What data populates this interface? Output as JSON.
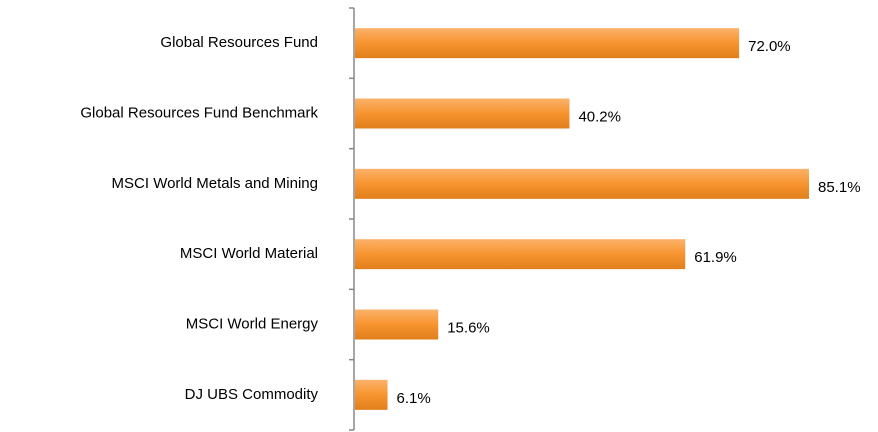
{
  "chart_data": {
    "type": "bar",
    "orientation": "horizontal",
    "categories": [
      "Global Resources Fund",
      "Global Resources Fund Benchmark",
      "MSCI World Metals and Mining",
      "MSCI World Material",
      "MSCI World Energy",
      "DJ UBS Commodity"
    ],
    "values": [
      72.0,
      40.2,
      85.1,
      61.9,
      15.6,
      6.1
    ],
    "value_labels": [
      "72.0%",
      "40.2%",
      "85.1%",
      "61.9%",
      "15.6%",
      "6.1%"
    ],
    "color": "#f7942f"
  }
}
